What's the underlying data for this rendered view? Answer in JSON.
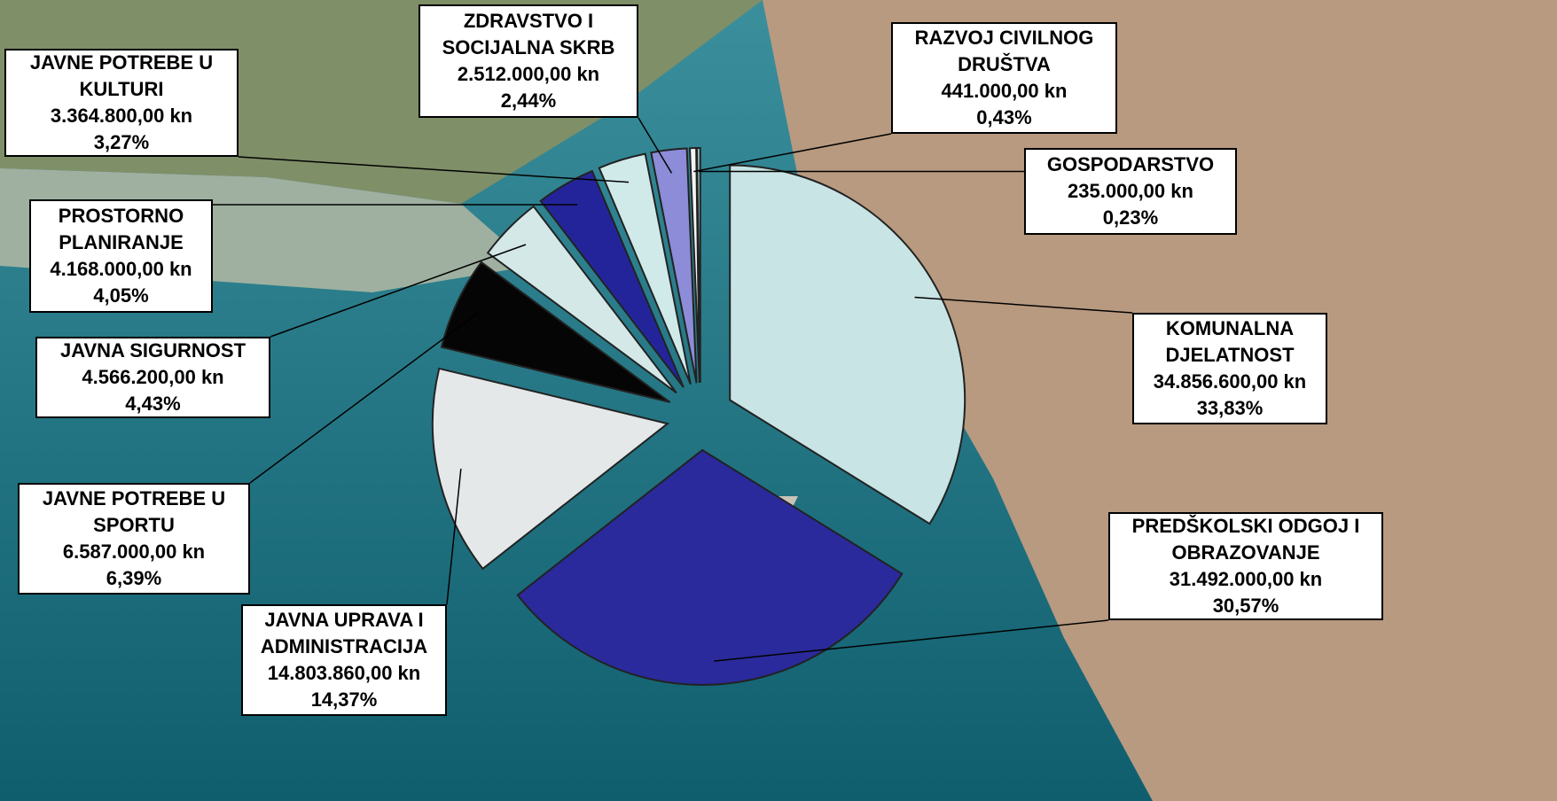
{
  "chart_data": {
    "type": "pie",
    "categories": [
      "KOMUNALNA DJELATNOST",
      "PREDŠKOLSKI ODGOJ I OBRAZOVANJE",
      "JAVNA UPRAVA I ADMINISTRACIJA",
      "JAVNE POTREBE U SPORTU",
      "JAVNA SIGURNOST",
      "PROSTORNO PLANIRANJE",
      "JAVNE POTREBE U KULTURI",
      "ZDRAVSTVO I SOCIJALNA SKRB",
      "RAZVOJ CIVILNOG DRUŠTVA",
      "GOSPODARSTVO"
    ],
    "values": [
      34856600,
      31492000,
      14803860,
      6587000,
      4566200,
      4168000,
      3364800,
      2512000,
      441000,
      235000
    ],
    "value_labels": [
      "34.856.600,00 kn",
      "31.492.000,00 kn",
      "14.803.860,00 kn",
      "6.587.000,00 kn",
      "4.566.200,00 kn",
      "4.168.000,00 kn",
      "3.364.800,00 kn",
      "2.512.000,00 kn",
      "441.000,00 kn",
      "235.000,00 kn"
    ],
    "shares": [
      33.83,
      30.57,
      14.37,
      6.39,
      4.43,
      4.05,
      3.27,
      2.44,
      0.43,
      0.23
    ],
    "share_labels": [
      "33,83%",
      "30,57%",
      "14,37%",
      "6,39%",
      "4,43%",
      "4,05%",
      "3,27%",
      "2,44%",
      "0,43%",
      "0,23%"
    ],
    "colors": [
      "#c8e4e4",
      "#2a2a9c",
      "#e4e8e8",
      "#050505",
      "#d4e8e8",
      "#24249a",
      "#d0eaea",
      "#8c8cd8",
      "#f4f4f4",
      "#9cc8c8"
    ]
  }
}
